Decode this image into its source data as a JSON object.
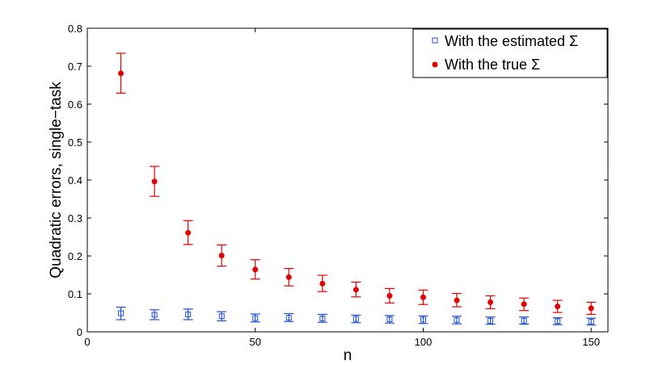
{
  "chart_data": {
    "type": "scatter",
    "xlabel": "n",
    "ylabel": "Quadratic errors, single−task",
    "xlim": [
      0,
      155
    ],
    "ylim": [
      0,
      0.8
    ],
    "xticks": [
      0,
      50,
      100,
      150
    ],
    "yticks": [
      0,
      0.1,
      0.2,
      0.3,
      0.4,
      0.5,
      0.6,
      0.7,
      0.8
    ],
    "grid": false,
    "legend_position": "top-right",
    "series": [
      {
        "name": "With the estimated Σ",
        "color": "#1f4fd6",
        "marker": "open-square",
        "x": [
          10,
          20,
          30,
          40,
          50,
          60,
          70,
          80,
          90,
          100,
          110,
          120,
          130,
          140,
          150
        ],
        "y": [
          0.049,
          0.045,
          0.046,
          0.041,
          0.036,
          0.037,
          0.035,
          0.034,
          0.033,
          0.032,
          0.031,
          0.029,
          0.029,
          0.028,
          0.027
        ],
        "err_low": [
          0.032,
          0.032,
          0.032,
          0.029,
          0.026,
          0.027,
          0.025,
          0.024,
          0.023,
          0.022,
          0.021,
          0.02,
          0.02,
          0.019,
          0.018
        ],
        "err_high": [
          0.065,
          0.058,
          0.06,
          0.053,
          0.047,
          0.048,
          0.046,
          0.044,
          0.043,
          0.042,
          0.041,
          0.039,
          0.039,
          0.037,
          0.036
        ]
      },
      {
        "name": "With the true Σ",
        "color": "#e00000",
        "marker": "filled-circle",
        "x": [
          10,
          20,
          30,
          40,
          50,
          60,
          70,
          80,
          90,
          100,
          110,
          120,
          130,
          140,
          150
        ],
        "y": [
          0.681,
          0.396,
          0.261,
          0.201,
          0.164,
          0.144,
          0.127,
          0.111,
          0.095,
          0.091,
          0.083,
          0.078,
          0.073,
          0.067,
          0.062
        ],
        "err_low": [
          0.629,
          0.357,
          0.23,
          0.173,
          0.139,
          0.121,
          0.106,
          0.092,
          0.076,
          0.072,
          0.066,
          0.061,
          0.056,
          0.051,
          0.046
        ],
        "err_high": [
          0.734,
          0.436,
          0.293,
          0.229,
          0.19,
          0.167,
          0.149,
          0.131,
          0.114,
          0.11,
          0.101,
          0.095,
          0.089,
          0.083,
          0.078
        ]
      }
    ]
  }
}
